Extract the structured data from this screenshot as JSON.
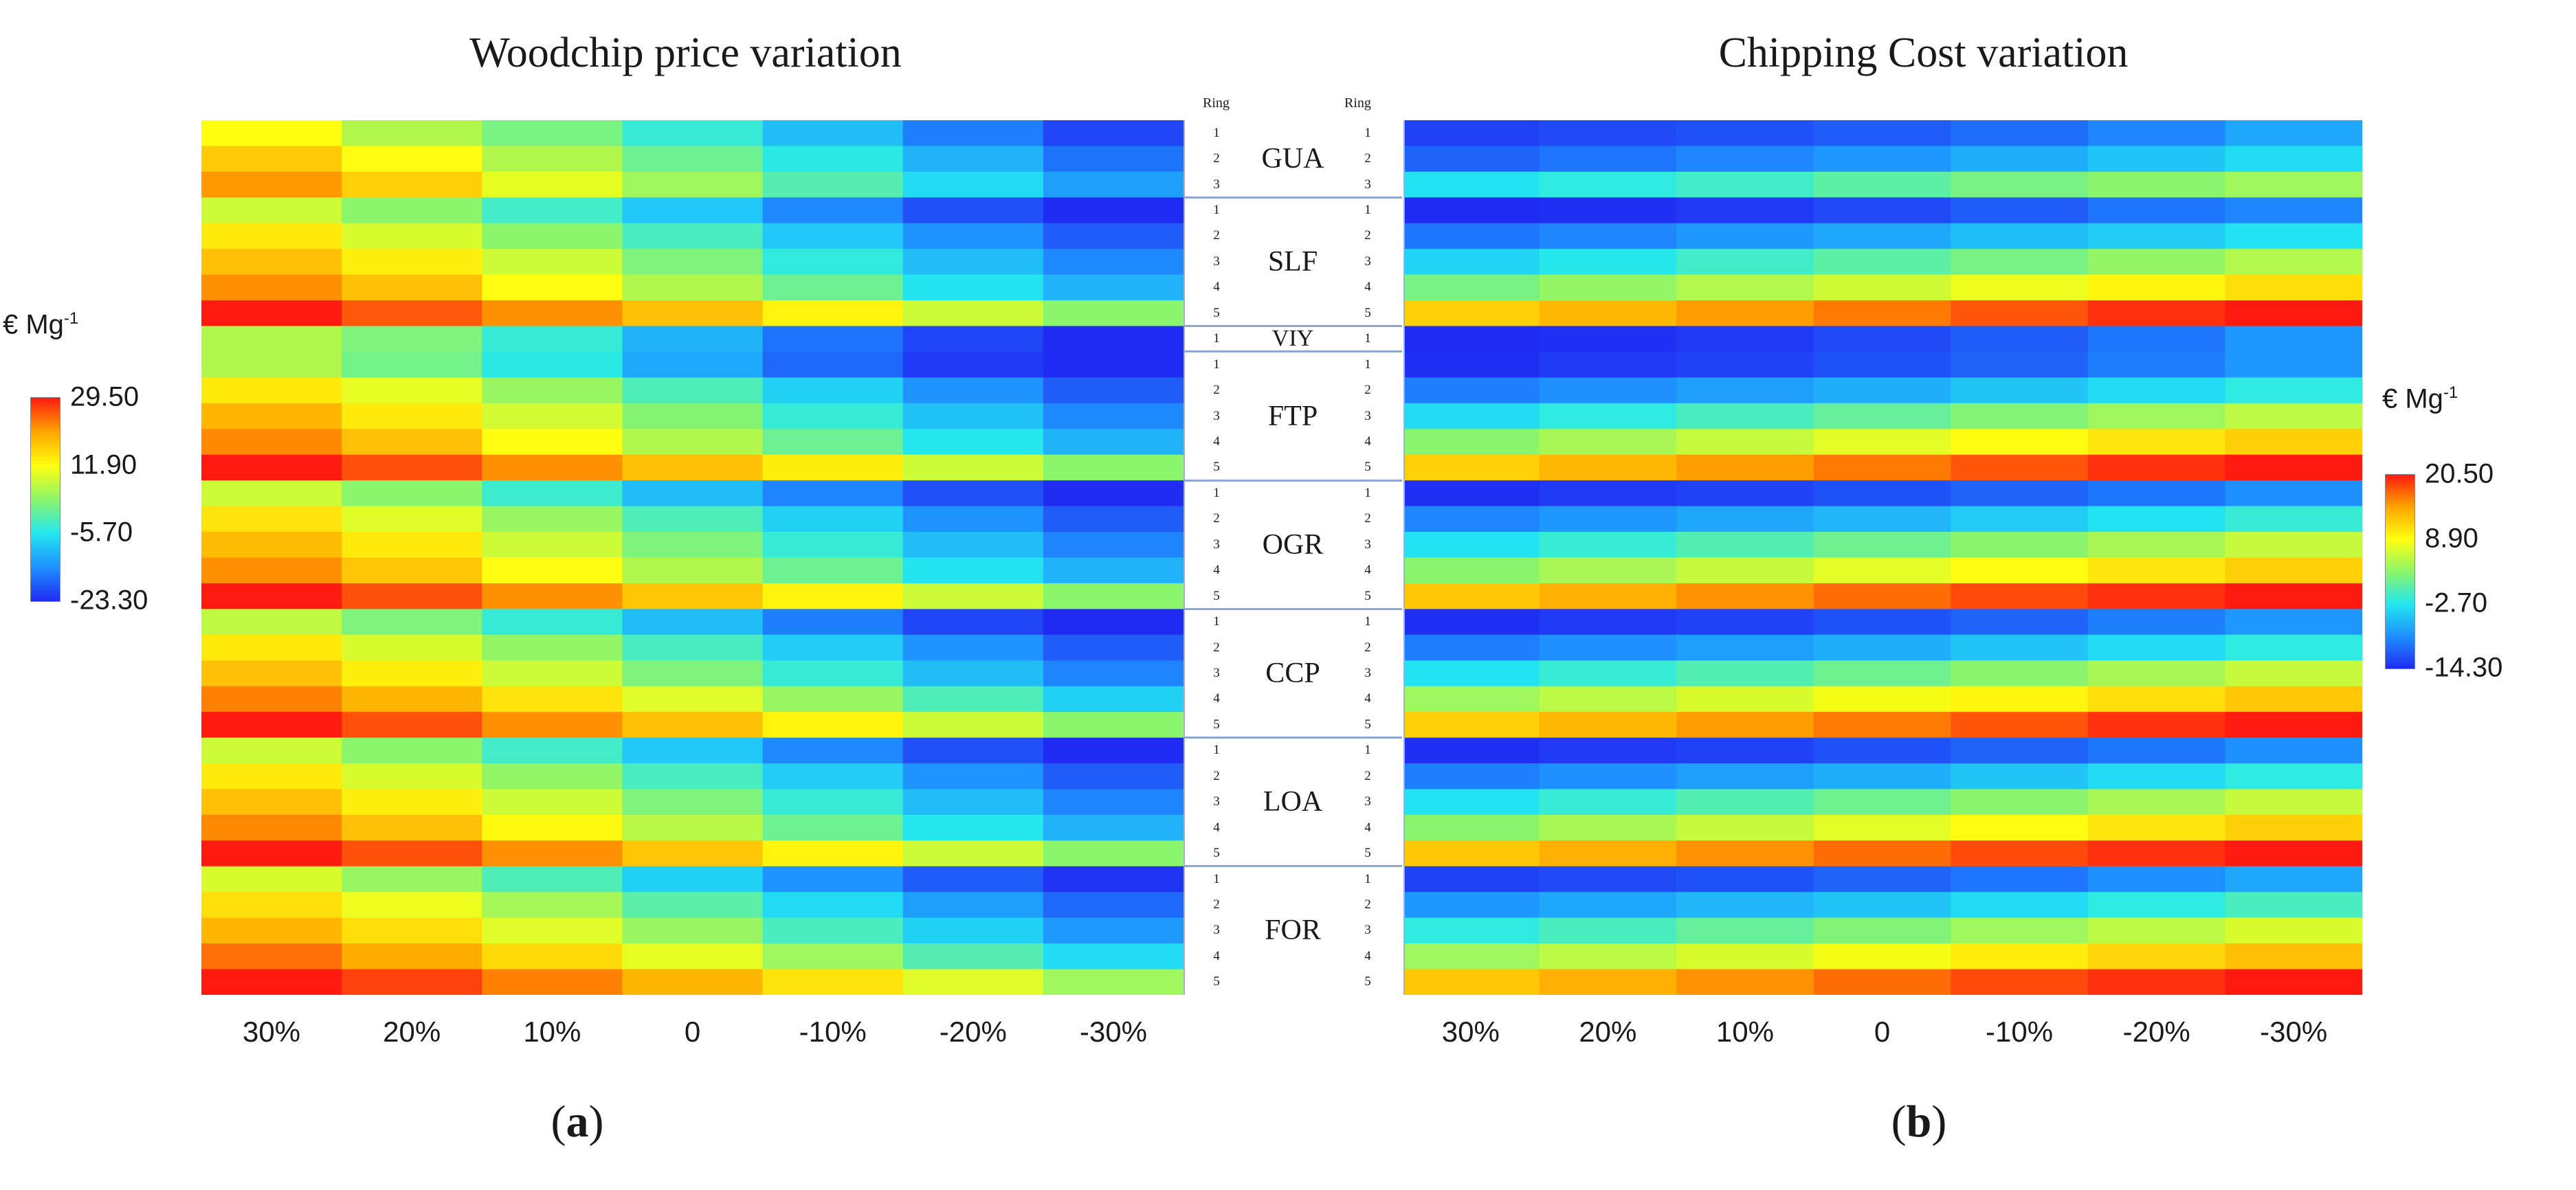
{
  "panels": {
    "left": {
      "title": "Woodchip price variation",
      "label": "a"
    },
    "right": {
      "title": "Chipping Cost variation",
      "label": "b"
    }
  },
  "unit": "€ Mg",
  "unit_exp": "-1",
  "ring_header": "Ring",
  "colormap": [
    "#1f2bf2",
    "#1e90ff",
    "#22e8f0",
    "#8cf56a",
    "#ffff10",
    "#ffa500",
    "#ff1a10"
  ],
  "chart_data": [
    {
      "type": "heatmap",
      "title": "Woodchip price variation",
      "panel_label": "(a)",
      "x_categories": [
        "30%",
        "20%",
        "10%",
        "0",
        "-10%",
        "-20%",
        "-30%"
      ],
      "colorbar": {
        "ticks": [
          "29.50",
          "11.90",
          "-5.70",
          "-23.30"
        ],
        "range": [
          -23.3,
          29.5
        ]
      },
      "rows": [
        {
          "site": "GUA",
          "ring": 1,
          "values": [
            11.9,
            6.0,
            1.5,
            -4.0,
            -10.0,
            -16.0,
            -21.0
          ]
        },
        {
          "site": "GUA",
          "ring": 2,
          "values": [
            17.0,
            12.0,
            6.0,
            0.5,
            -5.0,
            -11.0,
            -17.0
          ]
        },
        {
          "site": "GUA",
          "ring": 3,
          "values": [
            21.5,
            16.5,
            10.0,
            4.5,
            -1.5,
            -7.0,
            -13.0
          ]
        },
        {
          "site": "SLF",
          "ring": 1,
          "values": [
            8.0,
            3.0,
            -3.0,
            -9.0,
            -15.0,
            -20.0,
            -23.3
          ]
        },
        {
          "site": "SLF",
          "ring": 2,
          "values": [
            14.0,
            9.0,
            3.0,
            -2.5,
            -9.0,
            -14.0,
            -19.0
          ]
        },
        {
          "site": "SLF",
          "ring": 3,
          "values": [
            18.0,
            13.5,
            8.0,
            2.0,
            -4.5,
            -10.0,
            -15.0
          ]
        },
        {
          "site": "SLF",
          "ring": 4,
          "values": [
            22.0,
            18.0,
            12.0,
            6.0,
            0.5,
            -6.0,
            -11.0
          ]
        },
        {
          "site": "SLF",
          "ring": 5,
          "values": [
            29.5,
            25.5,
            22.0,
            18.0,
            13.0,
            8.0,
            3.0
          ]
        },
        {
          "site": "VIY",
          "ring": 1,
          "values": [
            6.0,
            2.0,
            -4.0,
            -11.0,
            -17.0,
            -21.0,
            -23.3
          ]
        },
        {
          "site": "FTP",
          "ring": 1,
          "values": [
            6.0,
            1.0,
            -5.0,
            -12.0,
            -18.0,
            -22.0,
            -23.3
          ]
        },
        {
          "site": "FTP",
          "ring": 2,
          "values": [
            14.0,
            10.0,
            4.0,
            -2.0,
            -8.0,
            -14.0,
            -19.0
          ]
        },
        {
          "site": "FTP",
          "ring": 3,
          "values": [
            19.0,
            14.0,
            8.5,
            2.5,
            -4.0,
            -9.5,
            -15.0
          ]
        },
        {
          "site": "FTP",
          "ring": 4,
          "values": [
            22.5,
            18.0,
            12.0,
            6.0,
            0.5,
            -5.5,
            -11.0
          ]
        },
        {
          "site": "FTP",
          "ring": 5,
          "values": [
            29.5,
            26.0,
            22.0,
            18.0,
            13.5,
            8.0,
            3.0
          ]
        },
        {
          "site": "OGR",
          "ring": 1,
          "values": [
            8.0,
            3.0,
            -3.5,
            -10.0,
            -15.5,
            -20.0,
            -23.0
          ]
        },
        {
          "site": "OGR",
          "ring": 2,
          "values": [
            14.5,
            9.5,
            4.0,
            -2.0,
            -8.0,
            -14.0,
            -19.0
          ]
        },
        {
          "site": "OGR",
          "ring": 3,
          "values": [
            18.5,
            14.0,
            8.0,
            2.0,
            -4.0,
            -10.0,
            -15.5
          ]
        },
        {
          "site": "OGR",
          "ring": 4,
          "values": [
            22.0,
            17.5,
            12.0,
            6.0,
            0.5,
            -6.0,
            -11.0
          ]
        },
        {
          "site": "OGR",
          "ring": 5,
          "values": [
            29.5,
            26.0,
            22.0,
            17.5,
            13.0,
            8.0,
            3.0
          ]
        },
        {
          "site": "CCP",
          "ring": 1,
          "values": [
            7.0,
            2.0,
            -4.0,
            -10.0,
            -16.0,
            -21.0,
            -23.3
          ]
        },
        {
          "site": "CCP",
          "ring": 2,
          "values": [
            14.0,
            9.0,
            3.5,
            -2.5,
            -8.5,
            -14.0,
            -19.0
          ]
        },
        {
          "site": "CCP",
          "ring": 3,
          "values": [
            18.0,
            13.5,
            8.0,
            2.0,
            -4.0,
            -10.0,
            -15.5
          ]
        },
        {
          "site": "CCP",
          "ring": 4,
          "values": [
            23.0,
            19.0,
            14.5,
            9.5,
            4.0,
            -2.0,
            -8.0
          ]
        },
        {
          "site": "CCP",
          "ring": 5,
          "values": [
            29.5,
            26.0,
            22.0,
            18.0,
            13.0,
            8.0,
            3.0
          ]
        },
        {
          "site": "LOA",
          "ring": 1,
          "values": [
            8.0,
            3.0,
            -3.0,
            -9.0,
            -15.0,
            -20.0,
            -23.3
          ]
        },
        {
          "site": "LOA",
          "ring": 2,
          "values": [
            14.0,
            9.0,
            3.5,
            -2.5,
            -8.5,
            -14.0,
            -19.0
          ]
        },
        {
          "site": "LOA",
          "ring": 3,
          "values": [
            18.0,
            13.5,
            8.0,
            2.0,
            -4.0,
            -10.0,
            -15.5
          ]
        },
        {
          "site": "LOA",
          "ring": 4,
          "values": [
            22.5,
            18.0,
            12.5,
            6.5,
            0.5,
            -5.5,
            -11.0
          ]
        },
        {
          "site": "LOA",
          "ring": 5,
          "values": [
            29.5,
            26.0,
            22.0,
            17.5,
            13.0,
            8.0,
            3.0
          ]
        },
        {
          "site": "FOR",
          "ring": 1,
          "values": [
            9.0,
            4.0,
            -2.0,
            -8.0,
            -14.0,
            -19.0,
            -22.5
          ]
        },
        {
          "site": "FOR",
          "ring": 2,
          "values": [
            15.0,
            10.5,
            5.0,
            -1.0,
            -7.0,
            -13.0,
            -18.0
          ]
        },
        {
          "site": "FOR",
          "ring": 3,
          "values": [
            19.0,
            15.0,
            9.5,
            4.0,
            -2.5,
            -8.0,
            -13.5
          ]
        },
        {
          "site": "FOR",
          "ring": 4,
          "values": [
            24.0,
            20.0,
            15.5,
            10.0,
            4.5,
            -1.5,
            -7.0
          ]
        },
        {
          "site": "FOR",
          "ring": 5,
          "values": [
            29.5,
            27.0,
            23.0,
            19.0,
            14.5,
            9.5,
            4.5
          ]
        }
      ]
    },
    {
      "type": "heatmap",
      "title": "Chipping Cost variation",
      "panel_label": "(b)",
      "x_categories": [
        "30%",
        "20%",
        "10%",
        "0",
        "-10%",
        "-20%",
        "-30%"
      ],
      "colorbar": {
        "ticks": [
          "20.50",
          "8.90",
          "-2.70",
          "-14.30"
        ],
        "range": [
          -14.3,
          20.5
        ]
      },
      "rows": [
        {
          "site": "GUA",
          "ring": 1,
          "values": [
            -13.0,
            -12.5,
            -12.0,
            -11.5,
            -10.5,
            -9.0,
            -7.0
          ]
        },
        {
          "site": "GUA",
          "ring": 2,
          "values": [
            -11.0,
            -10.0,
            -9.0,
            -8.0,
            -6.5,
            -5.0,
            -3.5
          ]
        },
        {
          "site": "GUA",
          "ring": 3,
          "values": [
            -3.0,
            -2.0,
            -1.0,
            0.5,
            2.0,
            3.0,
            4.0
          ]
        },
        {
          "site": "SLF",
          "ring": 1,
          "values": [
            -14.3,
            -14.0,
            -13.5,
            -12.5,
            -11.5,
            -10.0,
            -9.0
          ]
        },
        {
          "site": "SLF",
          "ring": 2,
          "values": [
            -10.0,
            -9.0,
            -8.0,
            -7.0,
            -5.5,
            -4.5,
            -3.0
          ]
        },
        {
          "site": "SLF",
          "ring": 3,
          "values": [
            -4.0,
            -2.5,
            -1.0,
            0.5,
            2.0,
            3.5,
            5.0
          ]
        },
        {
          "site": "SLF",
          "ring": 4,
          "values": [
            2.0,
            3.5,
            5.0,
            6.5,
            8.0,
            9.5,
            11.0
          ]
        },
        {
          "site": "SLF",
          "ring": 5,
          "values": [
            12.0,
            13.5,
            15.0,
            16.5,
            18.0,
            19.5,
            20.5
          ]
        },
        {
          "site": "VIY",
          "ring": 1,
          "values": [
            -14.3,
            -14.0,
            -13.5,
            -12.5,
            -11.5,
            -10.0,
            -8.0
          ]
        },
        {
          "site": "FTP",
          "ring": 1,
          "values": [
            -14.0,
            -13.5,
            -13.0,
            -12.0,
            -11.0,
            -9.5,
            -8.0
          ]
        },
        {
          "site": "FTP",
          "ring": 2,
          "values": [
            -9.5,
            -8.5,
            -7.5,
            -6.5,
            -5.0,
            -3.5,
            -2.0
          ]
        },
        {
          "site": "FTP",
          "ring": 3,
          "values": [
            -3.5,
            -2.0,
            -0.5,
            1.0,
            2.5,
            4.0,
            5.5
          ]
        },
        {
          "site": "FTP",
          "ring": 4,
          "values": [
            3.0,
            4.5,
            6.0,
            7.5,
            9.0,
            10.5,
            12.0
          ]
        },
        {
          "site": "FTP",
          "ring": 5,
          "values": [
            12.0,
            13.5,
            15.0,
            16.5,
            18.0,
            19.5,
            20.5
          ]
        },
        {
          "site": "OGR",
          "ring": 1,
          "values": [
            -14.0,
            -13.5,
            -13.0,
            -12.0,
            -11.0,
            -10.0,
            -8.5
          ]
        },
        {
          "site": "OGR",
          "ring": 2,
          "values": [
            -9.0,
            -8.0,
            -7.0,
            -6.0,
            -4.5,
            -3.0,
            -1.5
          ]
        },
        {
          "site": "OGR",
          "ring": 3,
          "values": [
            -3.0,
            -1.5,
            0.0,
            1.5,
            3.0,
            4.5,
            6.0
          ]
        },
        {
          "site": "OGR",
          "ring": 4,
          "values": [
            3.0,
            4.5,
            6.0,
            7.5,
            9.0,
            10.5,
            12.0
          ]
        },
        {
          "site": "OGR",
          "ring": 5,
          "values": [
            12.5,
            14.0,
            15.5,
            17.0,
            18.5,
            19.5,
            20.5
          ]
        },
        {
          "site": "CCP",
          "ring": 1,
          "values": [
            -14.0,
            -13.5,
            -13.0,
            -12.0,
            -11.0,
            -9.5,
            -8.0
          ]
        },
        {
          "site": "CCP",
          "ring": 2,
          "values": [
            -9.5,
            -8.5,
            -7.5,
            -6.5,
            -5.0,
            -3.5,
            -2.0
          ]
        },
        {
          "site": "CCP",
          "ring": 3,
          "values": [
            -3.0,
            -1.5,
            0.0,
            1.5,
            3.0,
            4.5,
            6.0
          ]
        },
        {
          "site": "CCP",
          "ring": 4,
          "values": [
            4.0,
            5.5,
            7.0,
            8.5,
            9.5,
            11.0,
            12.5
          ]
        },
        {
          "site": "CCP",
          "ring": 5,
          "values": [
            12.0,
            13.5,
            15.0,
            16.5,
            18.0,
            19.5,
            20.5
          ]
        },
        {
          "site": "LOA",
          "ring": 1,
          "values": [
            -14.0,
            -13.5,
            -13.0,
            -12.0,
            -11.0,
            -10.0,
            -8.5
          ]
        },
        {
          "site": "LOA",
          "ring": 2,
          "values": [
            -9.5,
            -8.5,
            -7.5,
            -6.5,
            -5.0,
            -3.5,
            -2.0
          ]
        },
        {
          "site": "LOA",
          "ring": 3,
          "values": [
            -3.0,
            -1.5,
            0.0,
            1.5,
            3.0,
            4.5,
            6.0
          ]
        },
        {
          "site": "LOA",
          "ring": 4,
          "values": [
            3.0,
            4.5,
            6.0,
            7.5,
            9.0,
            10.5,
            12.0
          ]
        },
        {
          "site": "LOA",
          "ring": 5,
          "values": [
            12.5,
            14.0,
            15.5,
            17.0,
            18.5,
            19.5,
            20.5
          ]
        },
        {
          "site": "FOR",
          "ring": 1,
          "values": [
            -13.0,
            -12.5,
            -12.0,
            -11.0,
            -10.0,
            -8.5,
            -7.0
          ]
        },
        {
          "site": "FOR",
          "ring": 2,
          "values": [
            -8.0,
            -7.0,
            -6.0,
            -5.0,
            -3.5,
            -2.0,
            -0.5
          ]
        },
        {
          "site": "FOR",
          "ring": 3,
          "values": [
            -2.0,
            -0.5,
            1.0,
            2.5,
            4.0,
            5.5,
            7.0
          ]
        },
        {
          "site": "FOR",
          "ring": 4,
          "values": [
            4.0,
            5.5,
            7.0,
            8.5,
            10.0,
            11.5,
            13.0
          ]
        },
        {
          "site": "FOR",
          "ring": 5,
          "values": [
            12.5,
            14.0,
            15.5,
            17.0,
            18.5,
            19.5,
            20.5
          ]
        }
      ]
    }
  ]
}
